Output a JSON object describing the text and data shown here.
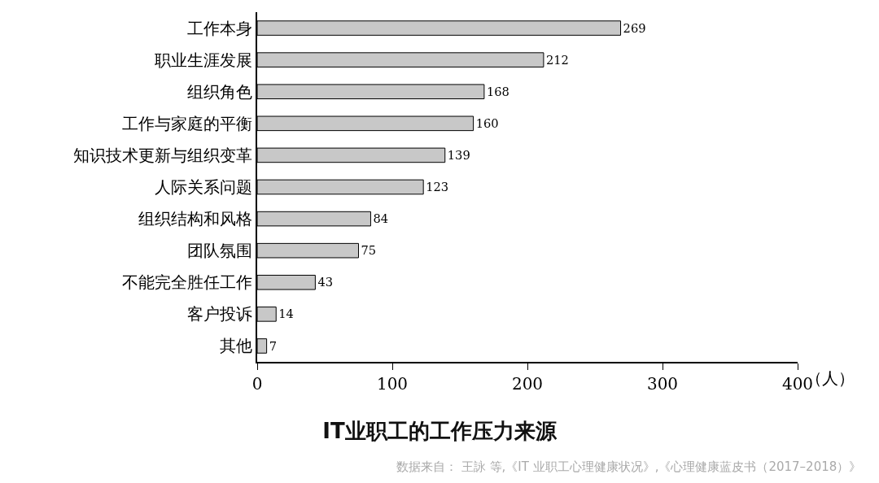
{
  "chart_data": {
    "type": "bar",
    "orientation": "horizontal",
    "title": "IT业职工的工作压力来源",
    "xlabel": "（人）",
    "categories": [
      "工作本身",
      "职业生涯发展",
      "组织角色",
      "工作与家庭的平衡",
      "知识技术更新与组织变革",
      "人际关系问题",
      "组织结构和风格",
      "团队氛围",
      "不能完全胜任工作",
      "客户投诉",
      "其他"
    ],
    "values": [
      269,
      212,
      168,
      160,
      139,
      123,
      84,
      75,
      43,
      14,
      7
    ],
    "color": "#c8c8c8",
    "xlim": [
      0,
      400
    ],
    "xticks": [
      0,
      100,
      200,
      300,
      400
    ],
    "data_labels": true,
    "annotations": [
      "数据来自： 王詠 等,《IT 业职工心理健康状况》,《心理健康蓝皮书（2017–2018）》"
    ]
  }
}
